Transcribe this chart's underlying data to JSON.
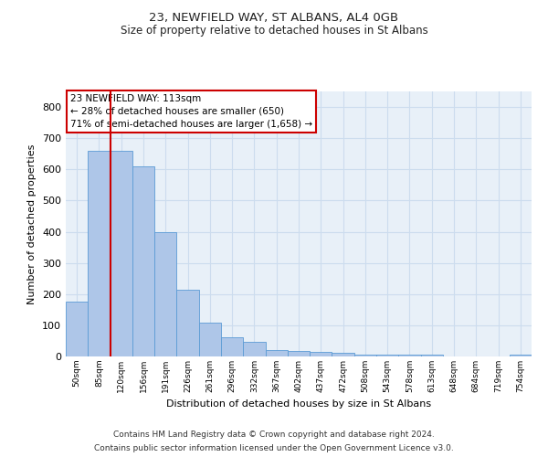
{
  "title1": "23, NEWFIELD WAY, ST ALBANS, AL4 0GB",
  "title2": "Size of property relative to detached houses in St Albans",
  "xlabel": "Distribution of detached houses by size in St Albans",
  "ylabel": "Number of detached properties",
  "footer1": "Contains HM Land Registry data © Crown copyright and database right 2024.",
  "footer2": "Contains public sector information licensed under the Open Government Licence v3.0.",
  "categories": [
    "50sqm",
    "85sqm",
    "120sqm",
    "156sqm",
    "191sqm",
    "226sqm",
    "261sqm",
    "296sqm",
    "332sqm",
    "367sqm",
    "402sqm",
    "437sqm",
    "472sqm",
    "508sqm",
    "543sqm",
    "578sqm",
    "613sqm",
    "648sqm",
    "684sqm",
    "719sqm",
    "754sqm"
  ],
  "values": [
    175,
    660,
    660,
    610,
    400,
    215,
    108,
    63,
    48,
    20,
    17,
    15,
    13,
    7,
    7,
    5,
    5,
    0,
    0,
    0,
    5
  ],
  "bar_color": "#aec6e8",
  "bar_edge_color": "#5b9bd5",
  "grid_color": "#ccdcee",
  "background_color": "#e8f0f8",
  "annotation_text1": "23 NEWFIELD WAY: 113sqm",
  "annotation_text2": "← 28% of detached houses are smaller (650)",
  "annotation_text3": "71% of semi-detached houses are larger (1,658) →",
  "annotation_box_facecolor": "#ffffff",
  "annotation_border_color": "#cc0000",
  "vline_color": "#cc0000",
  "vline_x": 1.5,
  "ylim": [
    0,
    850
  ],
  "yticks": [
    0,
    100,
    200,
    300,
    400,
    500,
    600,
    700,
    800
  ]
}
